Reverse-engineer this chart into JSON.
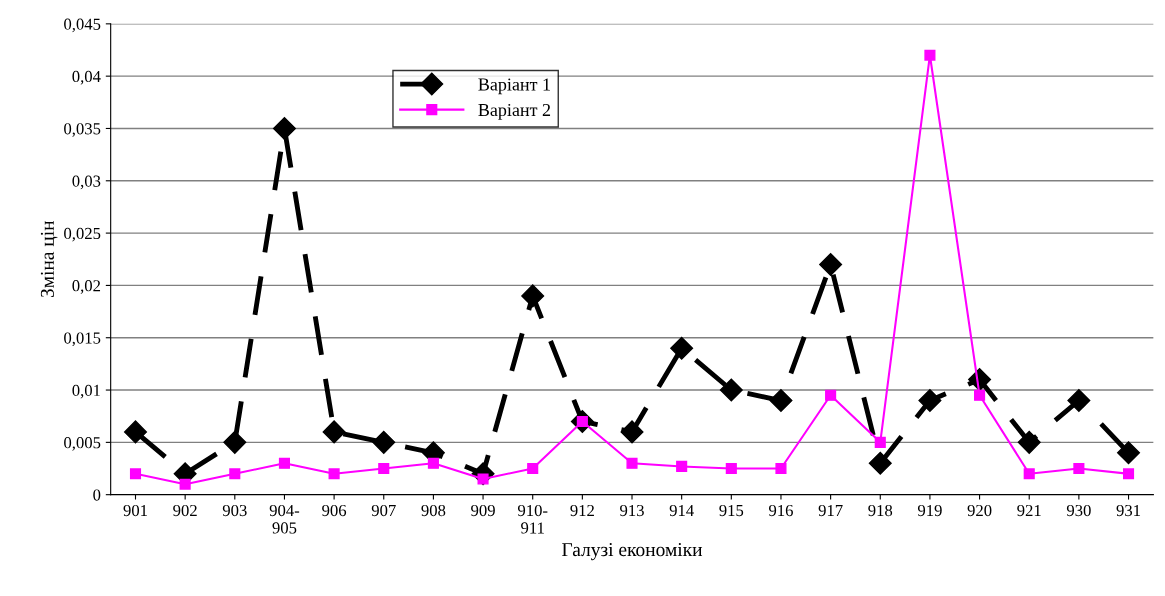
{
  "chart_data": {
    "type": "line",
    "xlabel": "Галузі економіки",
    "ylabel": "Зміна цін",
    "categories": [
      "901",
      "902",
      "903",
      "904-\n905",
      "906",
      "907",
      "908",
      "909",
      "910-\n911",
      "912",
      "913",
      "914",
      "915",
      "916",
      "917",
      "918",
      "919",
      "920",
      "921",
      "930",
      "931"
    ],
    "series": [
      {
        "name": "Варіант 1",
        "color": "#000000",
        "marker": "diamond",
        "line_style": "dashed",
        "values": [
          0.006,
          0.002,
          0.005,
          0.035,
          0.006,
          0.005,
          0.004,
          0.002,
          0.019,
          0.007,
          0.006,
          0.014,
          0.01,
          0.009,
          0.022,
          0.003,
          0.009,
          0.011,
          0.005,
          0.009,
          0.004
        ]
      },
      {
        "name": "Варіант 2",
        "color": "#ff00ff",
        "marker": "square",
        "line_style": "solid",
        "values": [
          0.002,
          0.001,
          0.002,
          0.003,
          0.002,
          0.0025,
          0.003,
          0.0015,
          0.0025,
          0.007,
          0.003,
          0.0027,
          0.0025,
          0.0025,
          0.0095,
          0.005,
          0.042,
          0.0095,
          0.002,
          0.0025,
          0.002
        ]
      }
    ],
    "ylim": [
      0,
      0.045
    ],
    "yticks": [
      0,
      {
        "value": 0.005,
        "label": "0,005"
      },
      {
        "value": 0.01,
        "label": "0,01"
      },
      {
        "value": 0.015,
        "label": "0,015"
      },
      {
        "value": 0.02,
        "label": "0,02"
      },
      {
        "value": 0.025,
        "label": "0,025"
      },
      {
        "value": 0.03,
        "label": "0,03"
      },
      {
        "value": 0.035,
        "label": "0,035"
      },
      {
        "value": 0.04,
        "label": "0,04"
      },
      {
        "value": 0.045,
        "label": "0,045"
      }
    ],
    "grid": "y",
    "legend": "top"
  }
}
